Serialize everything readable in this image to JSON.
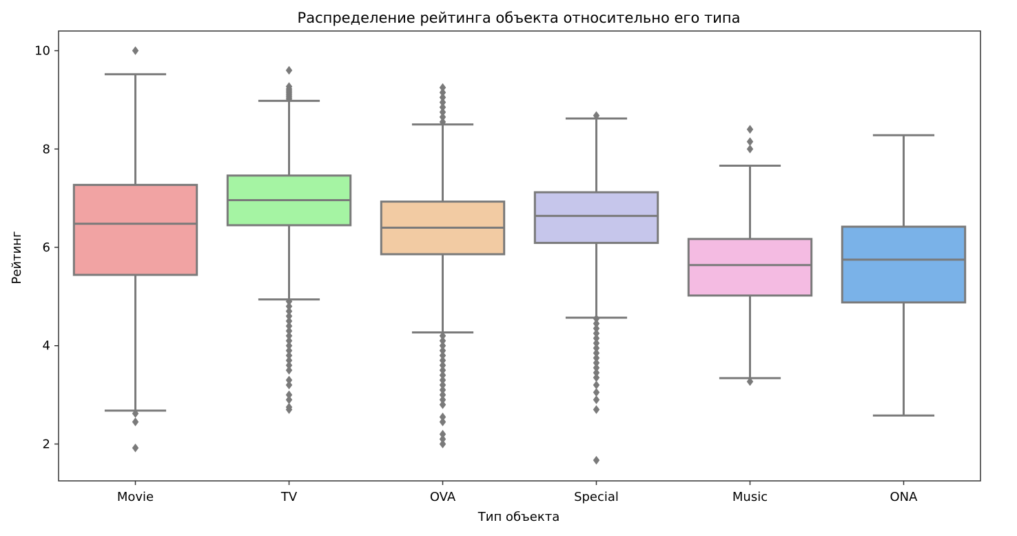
{
  "chart_data": {
    "type": "boxplot",
    "title": "Распределение рейтинга объекта относительно его типа",
    "xlabel": "Тип объекта",
    "ylabel": "Рейтинг",
    "ylim": [
      1.25,
      10.4
    ],
    "yticks": [
      2,
      4,
      6,
      8,
      10
    ],
    "grid": false,
    "legend": "none",
    "line_color": "#7a7a7a",
    "series": [
      {
        "category": "Movie",
        "color": "#f1a3a3",
        "whisker_low": 2.68,
        "q1": 5.44,
        "median": 6.48,
        "q3": 7.27,
        "whisker_high": 9.52,
        "outliers": [
          10.0,
          2.62,
          2.45,
          1.92
        ]
      },
      {
        "category": "TV",
        "color": "#a5f4a3",
        "whisker_low": 4.94,
        "q1": 6.45,
        "median": 6.96,
        "q3": 7.46,
        "whisker_high": 8.98,
        "outliers": [
          9.6,
          9.27,
          9.22,
          9.18,
          9.14,
          9.1,
          9.06,
          9.02,
          4.9,
          4.8,
          4.7,
          4.6,
          4.5,
          4.4,
          4.3,
          4.2,
          4.1,
          4.0,
          3.9,
          3.8,
          3.7,
          3.6,
          3.5,
          3.3,
          3.2,
          3.0,
          2.9,
          2.75,
          2.7
        ]
      },
      {
        "category": "OVA",
        "color": "#f2cba3",
        "whisker_low": 4.27,
        "q1": 5.86,
        "median": 6.4,
        "q3": 6.93,
        "whisker_high": 8.5,
        "outliers": [
          9.25,
          9.15,
          9.05,
          8.95,
          8.85,
          8.75,
          8.65,
          8.55,
          4.2,
          4.1,
          4.0,
          3.9,
          3.8,
          3.7,
          3.6,
          3.5,
          3.4,
          3.3,
          3.2,
          3.1,
          3.0,
          2.9,
          2.8,
          2.55,
          2.45,
          2.2,
          2.1,
          2.0
        ]
      },
      {
        "category": "Special",
        "color": "#c6c6eb",
        "whisker_low": 4.57,
        "q1": 6.09,
        "median": 6.64,
        "q3": 7.12,
        "whisker_high": 8.62,
        "outliers": [
          8.68,
          4.55,
          4.45,
          4.35,
          4.25,
          4.15,
          4.05,
          3.95,
          3.85,
          3.75,
          3.65,
          3.55,
          3.45,
          3.35,
          3.2,
          3.05,
          2.9,
          2.7,
          1.67
        ]
      },
      {
        "category": "Music",
        "color": "#f4bbe2",
        "whisker_low": 3.34,
        "q1": 5.02,
        "median": 5.64,
        "q3": 6.17,
        "whisker_high": 7.66,
        "outliers": [
          8.4,
          8.15,
          8.0,
          3.27
        ]
      },
      {
        "category": "ONA",
        "color": "#7ab2e8",
        "whisker_low": 2.58,
        "q1": 4.88,
        "median": 5.75,
        "q3": 6.42,
        "whisker_high": 8.28,
        "outliers": []
      }
    ]
  }
}
